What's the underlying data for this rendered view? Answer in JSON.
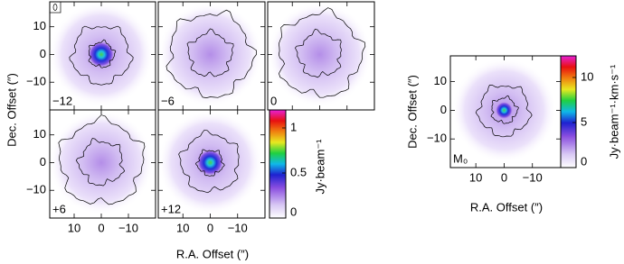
{
  "chart_data": [
    {
      "type": "image",
      "label": "−12",
      "ylabel": "Dec. Offset (″)",
      "xlim": [
        19,
        -20
      ],
      "ylim": [
        -20,
        19
      ],
      "xticks": [
        10,
        0,
        {
          "value": -10,
          "label": "−10"
        }
      ],
      "yticks": [
        10,
        0,
        {
          "value": -10,
          "label": "−10"
        }
      ]
    },
    {
      "type": "image",
      "label": "−6",
      "xlim": [
        19,
        -20
      ],
      "ylim": [
        -20,
        19
      ],
      "xticks": [
        10,
        0,
        {
          "value": -10,
          "label": "−10"
        }
      ],
      "yticks": [
        10,
        0,
        {
          "value": -10,
          "label": "−10"
        }
      ]
    },
    {
      "type": "image",
      "label": "0",
      "xlim": [
        19,
        -20
      ],
      "ylim": [
        -20,
        19
      ],
      "xticks": [
        10,
        0,
        {
          "value": -10,
          "label": "−10"
        }
      ],
      "yticks": [
        10,
        0,
        {
          "value": -10,
          "label": "−10"
        }
      ]
    },
    {
      "type": "image",
      "label": "+6",
      "xlim": [
        19,
        -20
      ],
      "ylim": [
        -20,
        19
      ],
      "xticks": [
        10,
        0,
        {
          "value": -10,
          "label": "−10"
        }
      ],
      "yticks": [
        10,
        0,
        {
          "value": -10,
          "label": "−10"
        }
      ]
    },
    {
      "type": "image",
      "label": "+12",
      "xlabel": "R.A. Offset (″)",
      "xlim": [
        19,
        -20
      ],
      "ylim": [
        -20,
        19
      ],
      "xticks": [
        10,
        0,
        {
          "value": -10,
          "label": "−10"
        }
      ],
      "yticks": [
        10,
        0,
        {
          "value": -10,
          "label": "−10"
        }
      ]
    },
    {
      "type": "colorbar",
      "label": "Jy·beam⁻¹",
      "clim": [
        0,
        1.2
      ],
      "ticks": [
        0,
        0.5,
        1
      ]
    },
    {
      "type": "image",
      "label": "M₀",
      "xlabel": "R.A. Offset (″)",
      "ylabel": "Dec. Offset (″)",
      "xlim": [
        19,
        -20
      ],
      "ylim": [
        -20,
        19
      ],
      "xticks": [
        10,
        0,
        {
          "value": -10,
          "label": "−10"
        }
      ],
      "yticks": [
        10,
        0,
        {
          "value": -10,
          "label": "−10"
        }
      ]
    },
    {
      "type": "colorbar",
      "label": "Jy·beam⁻¹·km·s⁻¹",
      "clim": [
        0,
        12.4
      ],
      "ticks": [
        0,
        5,
        10
      ]
    }
  ]
}
